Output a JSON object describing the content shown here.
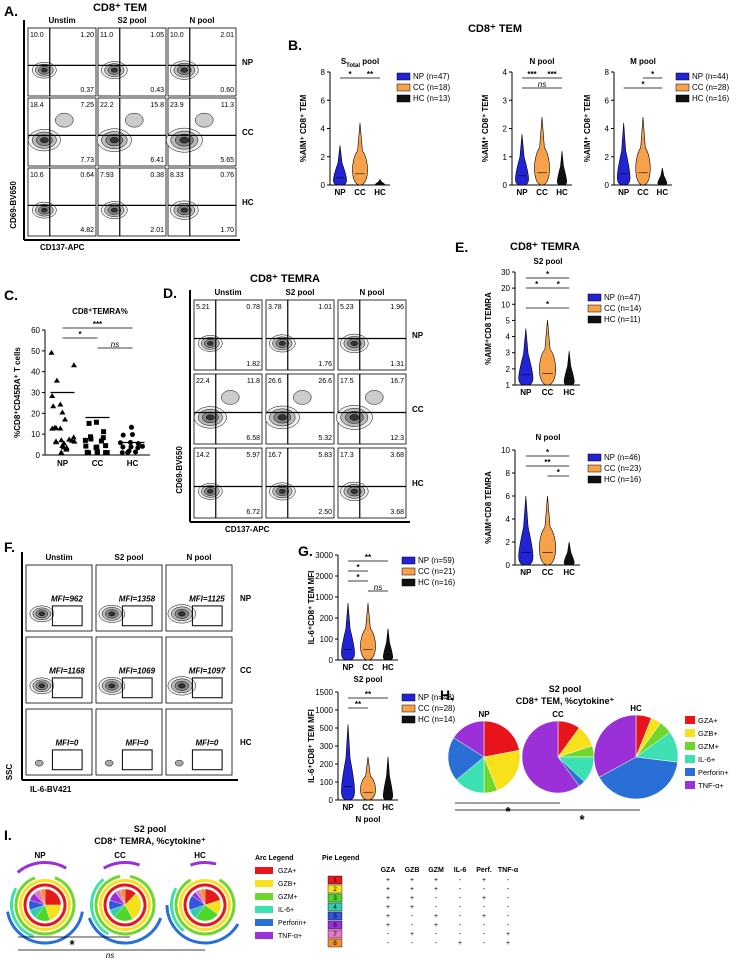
{
  "panels": {
    "A": {
      "label": "A.",
      "title": "CD8⁺ TEM",
      "columns": [
        "Unstim",
        "S2 pool",
        "N pool"
      ],
      "rows": [
        "NP",
        "CC",
        "HC"
      ],
      "values": [
        [
          [
            "10.0",
            "1.20",
            "0.37"
          ],
          [
            "11.0",
            "1.05",
            "0.43"
          ],
          [
            "10.0",
            "2.01",
            "0.60"
          ]
        ],
        [
          [
            "18.4",
            "7.25",
            "7.73"
          ],
          [
            "22.2",
            "15.8",
            "6.41"
          ],
          [
            "23.9",
            "11.3",
            "5.65"
          ]
        ],
        [
          [
            "10.6",
            "0.64",
            "4.82"
          ],
          [
            "7.93",
            "0.38",
            "2.01"
          ],
          [
            "8.33",
            "0.76",
            "1.70"
          ]
        ]
      ],
      "y_axis": "CD69-BV650",
      "x_axis": "CD137-APC"
    },
    "B": {
      "label": "B.",
      "title": "CD8⁺ TEM",
      "plots": [
        {
          "title": {
            "main": "S",
            "sub": "Total",
            "rest": " pool"
          },
          "ylabel": "%AIM⁺ CD8⁺ TEM",
          "yticks": [
            "0",
            "2",
            "4",
            "6",
            "8"
          ],
          "categories": [
            "NP",
            "CC",
            "HC"
          ],
          "legend": [
            "NP (n=47)",
            "CC (n=18)",
            "HC (n=13)"
          ],
          "sig": [
            "*",
            "**"
          ]
        },
        {
          "title": "N pool",
          "ylabel": "%AIM⁺ CD8⁺ TEM",
          "yticks": [
            "0",
            "1",
            "2",
            "3",
            "4"
          ],
          "categories": [
            "NP",
            "CC",
            "HC"
          ],
          "sig": [
            "***",
            "***",
            "ns"
          ]
        },
        {
          "title": "M pool",
          "ylabel": "%AIM⁺ CD8⁺ TEM",
          "yticks": [
            "0",
            "2",
            "4",
            "6",
            "8"
          ],
          "categories": [
            "NP",
            "CC",
            "HC"
          ],
          "legend": [
            "NP (n=44)",
            "CC (n=28)",
            "HC (n=16)"
          ],
          "sig": [
            "*",
            "*"
          ]
        }
      ]
    },
    "C": {
      "label": "C.",
      "title": "CD8⁺TEMRA%",
      "ylabel": "%CD8⁺CD45RA⁺ T cells",
      "yticks": [
        "0",
        "10",
        "20",
        "30",
        "40",
        "50",
        "60"
      ],
      "categories": [
        "NP",
        "CC",
        "HC"
      ],
      "sig": [
        "***",
        "*",
        "ns"
      ]
    },
    "D": {
      "label": "D.",
      "title": "CD8⁺ TEMRA",
      "columns": [
        "Unstim",
        "S2 pool",
        "N pool"
      ],
      "rows": [
        "NP",
        "CC",
        "HC"
      ],
      "values": [
        [
          [
            "5.21",
            "0.78",
            "1.82"
          ],
          [
            "3.78",
            "1.01",
            "1.76"
          ],
          [
            "5.23",
            "1.96",
            "1.31"
          ]
        ],
        [
          [
            "22.4",
            "11.8",
            "6.58"
          ],
          [
            "26.6",
            "26.6",
            "5.32"
          ],
          [
            "17.5",
            "16.7",
            "12.3"
          ]
        ],
        [
          [
            "14.2",
            "5.97",
            "6.72"
          ],
          [
            "16.7",
            "5.83",
            "2.50"
          ],
          [
            "17.3",
            "3.68",
            "3.68"
          ]
        ]
      ],
      "y_axis": "CD69-BV650",
      "x_axis": "CD137-APC"
    },
    "E": {
      "label": "E.",
      "title": "CD8⁺ TEMRA",
      "plots": [
        {
          "title": "S2 pool",
          "ylabel": "%AIM⁺CD8 TEMRA",
          "yticks": [
            "1",
            "2",
            "3",
            "4",
            "5",
            "10",
            "20",
            "30"
          ],
          "categories": [
            "NP",
            "CC",
            "HC"
          ],
          "legend": [
            "NP (n=47)",
            "CC (n=14)",
            "HC (n=11)"
          ],
          "sig": [
            "*",
            "*",
            "*",
            "*"
          ]
        },
        {
          "title": "N pool",
          "ylabel": "%AIM⁺CD8 TEMRA",
          "yticks": [
            "0",
            "2",
            "4",
            "6",
            "8",
            "10"
          ],
          "categories": [
            "NP",
            "CC",
            "HC"
          ],
          "legend": [
            "NP (n=46)",
            "CC (n=23)",
            "HC (n=16)"
          ],
          "sig": [
            "*",
            "**",
            "*"
          ]
        }
      ]
    },
    "F": {
      "label": "F.",
      "columns": [
        "Unstim",
        "S2 pool",
        "N pool"
      ],
      "rows": [
        "NP",
        "CC",
        "HC"
      ],
      "mfi": [
        [
          "MFI=962",
          "MFI=1358",
          "MFI=1125"
        ],
        [
          "MFI=1168",
          "MFI=1069",
          "MFI=1097"
        ],
        [
          "MFI=0",
          "MFI=0",
          "MFI=0"
        ]
      ],
      "y_axis": "SSC",
      "x_axis": "IL-6-BV421"
    },
    "G": {
      "label": "G.",
      "plots": [
        {
          "title": "S2 pool",
          "ylabel": "IL-6⁺CD8⁺ TEM MFI",
          "yticks": [
            "0",
            "100",
            "200",
            "1000",
            "2000",
            "3000"
          ],
          "categories": [
            "NP",
            "CC",
            "HC"
          ],
          "legend": [
            "NP (n=59)",
            "CC (n=21)",
            "HC (n=16)"
          ],
          "sig": [
            "**",
            "*",
            "*",
            "ns"
          ]
        },
        {
          "title": "N pool",
          "ylabel": "IL-6⁺CD8⁺ TEM MFI",
          "yticks": [
            "0",
            "100",
            "200",
            "300",
            "500",
            "1000",
            "1500"
          ],
          "categories": [
            "NP",
            "CC",
            "HC"
          ],
          "legend": [
            "NP (n=43)",
            "CC (n=28)",
            "HC (n=14)"
          ],
          "sig": [
            "**",
            "**"
          ]
        }
      ]
    },
    "H": {
      "label": "H.",
      "title": [
        "S2 pool",
        "CD8⁺ TEM, %cytokine⁺"
      ],
      "legend": [
        "GZA+",
        "GZB+",
        "GZM+",
        "IL-6+",
        "Perforin+",
        "TNF-α+"
      ],
      "colors": [
        "#e8141b",
        "#f7e11a",
        "#6fd62b",
        "#3de0b0",
        "#2a6fd6",
        "#9b30d9"
      ],
      "pies": [
        {
          "name": "NP",
          "values": [
            22,
            22,
            6,
            14,
            20,
            16
          ]
        },
        {
          "name": "CC",
          "values": [
            10,
            10,
            5,
            12,
            3,
            60
          ]
        },
        {
          "name": "HC",
          "values": [
            6,
            4,
            5,
            12,
            40,
            33
          ]
        }
      ],
      "sig": [
        "*",
        "*"
      ]
    },
    "I": {
      "label": "I.",
      "title": [
        "S2 pool",
        "CD8⁺ TEMRA, %cytokine⁺"
      ],
      "groups": [
        "NP",
        "CC",
        "HC"
      ],
      "arc_legend": {
        "title": "Arc Legend",
        "items": [
          "GZA+",
          "GZB+",
          "GZM+",
          "IL-6+",
          "Perforin+",
          "TNF-α+"
        ],
        "colors": [
          "#e8141b",
          "#f7e11a",
          "#6fd62b",
          "#3de0b0",
          "#2a6fd6",
          "#9b30d9"
        ]
      },
      "pie_legend": {
        "title": "Pie Legend",
        "header": [
          "GZA",
          "GZB",
          "GZM",
          "IL-6",
          "Perf.",
          "TNF-α"
        ],
        "rows": [
          {
            "id": "1",
            "color": "#e41a1c",
            "marks": [
              "+",
              "+",
              "+",
              "-",
              "+",
              "-"
            ]
          },
          {
            "id": "2",
            "color": "#f7e11a",
            "marks": [
              "+",
              "+",
              "+",
              "-",
              "-",
              "-"
            ]
          },
          {
            "id": "3",
            "color": "#4dd62b",
            "marks": [
              "+",
              "+",
              "-",
              "-",
              "+",
              "-"
            ]
          },
          {
            "id": "4",
            "color": "#33ccaa",
            "marks": [
              "+",
              "+",
              "-",
              "-",
              "-",
              "-"
            ]
          },
          {
            "id": "5",
            "color": "#3355dd",
            "marks": [
              "+",
              "-",
              "+",
              "-",
              "+",
              "-"
            ]
          },
          {
            "id": "6",
            "color": "#9b30d9",
            "marks": [
              "+",
              "-",
              "+",
              "-",
              "-",
              "-"
            ]
          },
          {
            "id": "7",
            "color": "#e377c2",
            "marks": [
              "-",
              "+",
              "-",
              "-",
              "-",
              "+"
            ]
          },
          {
            "id": "8",
            "color": "#f28e2b",
            "marks": [
              "-",
              "-",
              "-",
              "+",
              "-",
              "+"
            ]
          }
        ]
      },
      "sig": [
        "*",
        "ns"
      ]
    }
  }
}
